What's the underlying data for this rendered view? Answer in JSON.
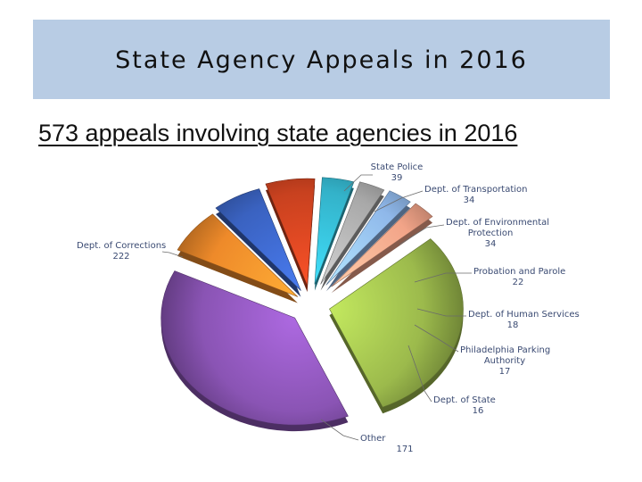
{
  "slide": {
    "title": "State Agency Appeals in 2016",
    "subtitle": "573 appeals involving state agencies in 2016"
  },
  "chart_data": {
    "type": "pie",
    "style": "3d-exploded",
    "title": "",
    "slices": [
      {
        "name": "State Police",
        "value": 39,
        "color": "#ee8a2a"
      },
      {
        "name": "Dept. of Transportation",
        "value": 34,
        "color": "#3a62c0"
      },
      {
        "name": "Dept. of Environmental Protection",
        "value": 34,
        "color": "#c8411f"
      },
      {
        "name": "Probation and Parole",
        "value": 22,
        "color": "#33b2c9"
      },
      {
        "name": "Dept. of Human Services",
        "value": 18,
        "color": "#a8a8a8"
      },
      {
        "name": "Philadelphia Parking Authority",
        "value": 17,
        "color": "#8fb8ea"
      },
      {
        "name": "Dept. of State",
        "value": 16,
        "color": "#f2a488"
      },
      {
        "name": "Other",
        "value": 171,
        "color": "#9cba4c"
      },
      {
        "name": "Dept. of Corrections",
        "value": 222,
        "color": "#8a54b4"
      }
    ]
  }
}
